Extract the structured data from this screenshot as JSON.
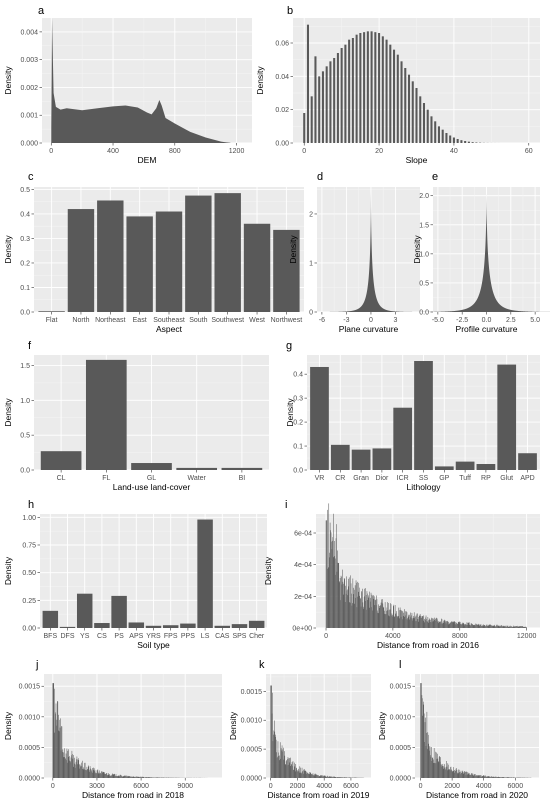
{
  "chart_data": [
    {
      "id": "a",
      "label": "a",
      "type": "histogram",
      "xlabel": "DEM",
      "ylabel": "Density",
      "xlim": [
        -60,
        1300
      ],
      "ylim": [
        0,
        0.0045
      ],
      "xticks": [
        0,
        400,
        800,
        1200
      ],
      "yticks": [
        0,
        0.001,
        0.002,
        0.003,
        0.004
      ],
      "yticklabels": [
        "0.000",
        "0.001",
        "0.002",
        "0.003",
        "0.004"
      ],
      "profile": [
        [
          0,
          0.0006
        ],
        [
          5,
          0.0045
        ],
        [
          15,
          0.0018
        ],
        [
          30,
          0.0013
        ],
        [
          60,
          0.0012
        ],
        [
          100,
          0.00125
        ],
        [
          200,
          0.00118
        ],
        [
          300,
          0.00125
        ],
        [
          400,
          0.00132
        ],
        [
          480,
          0.00135
        ],
        [
          560,
          0.00128
        ],
        [
          620,
          0.0011
        ],
        [
          650,
          0.00103
        ],
        [
          680,
          0.00125
        ],
        [
          700,
          0.00155
        ],
        [
          715,
          0.00135
        ],
        [
          740,
          0.0009
        ],
        [
          800,
          0.0007
        ],
        [
          900,
          0.0004
        ],
        [
          1000,
          0.0002
        ],
        [
          1100,
          5e-05
        ],
        [
          1160,
          0
        ]
      ]
    },
    {
      "id": "b",
      "label": "b",
      "type": "bar",
      "xlabel": "Slope",
      "ylabel": "Density",
      "xlim": [
        -3,
        63
      ],
      "ylim": [
        0,
        0.075
      ],
      "xticks": [
        0,
        20,
        40,
        60
      ],
      "yticks": [
        0,
        0.02,
        0.04,
        0.06
      ],
      "yticklabels": [
        "0.00",
        "0.02",
        "0.04",
        "0.06"
      ],
      "x": [
        0,
        1,
        2,
        3,
        4,
        5,
        6,
        7,
        8,
        9,
        10,
        11,
        12,
        13,
        14,
        15,
        16,
        17,
        18,
        19,
        20,
        21,
        22,
        23,
        24,
        25,
        26,
        27,
        28,
        29,
        30,
        31,
        32,
        33,
        34,
        35,
        36,
        37,
        38,
        39,
        40,
        41,
        42,
        43,
        44,
        45,
        46,
        47,
        48,
        49,
        50,
        51,
        52,
        53,
        54,
        55,
        56,
        57,
        58,
        59,
        60
      ],
      "values": [
        0.018,
        0.071,
        0.028,
        0.052,
        0.04,
        0.043,
        0.046,
        0.049,
        0.051,
        0.054,
        0.057,
        0.059,
        0.062,
        0.063,
        0.065,
        0.066,
        0.0665,
        0.067,
        0.067,
        0.0665,
        0.066,
        0.064,
        0.062,
        0.059,
        0.056,
        0.053,
        0.049,
        0.045,
        0.041,
        0.037,
        0.033,
        0.028,
        0.024,
        0.02,
        0.016,
        0.013,
        0.01,
        0.008,
        0.006,
        0.0045,
        0.0033,
        0.0024,
        0.0017,
        0.0012,
        0.0008,
        0.0005,
        0.0003,
        0.0002,
        0.0001,
        6e-05,
        3e-05,
        2e-05,
        1e-05,
        0,
        0,
        0,
        0,
        0,
        0,
        0,
        0
      ]
    },
    {
      "id": "c",
      "label": "c",
      "type": "bar",
      "xlabel": "Aspect",
      "ylabel": "Density",
      "ylim": [
        0,
        0.51
      ],
      "yticks": [
        0,
        0.1,
        0.2,
        0.3,
        0.4,
        0.5
      ],
      "yticklabels": [
        "0.0",
        "0.1",
        "0.2",
        "0.3",
        "0.4",
        "0.5"
      ],
      "categories": [
        "Flat",
        "North",
        "Northeast",
        "East",
        "Southeast",
        "South",
        "Southwest",
        "West",
        "Northwest"
      ],
      "values": [
        0.003,
        0.42,
        0.455,
        0.39,
        0.41,
        0.475,
        0.485,
        0.36,
        0.335
      ]
    },
    {
      "id": "d",
      "label": "d",
      "type": "histogram",
      "xlabel": "Plane curvature",
      "ylabel": "Density",
      "xlim": [
        -6.6,
        6
      ],
      "ylim": [
        0,
        2.55
      ],
      "xticks": [
        -6,
        -3,
        0,
        3
      ],
      "yticks": [
        0,
        1,
        2
      ],
      "yticklabels": [
        "0",
        "1",
        "2"
      ],
      "peak": [
        0,
        2.45
      ],
      "width": 0.28
    },
    {
      "id": "e",
      "label": "e",
      "type": "histogram",
      "xlabel": "Profile curvature",
      "ylabel": "Density",
      "xlim": [
        -5.5,
        5.5
      ],
      "ylim": [
        0,
        2.15
      ],
      "xticks": [
        -5,
        -2.5,
        0,
        2.5,
        5
      ],
      "xticklabels": [
        "-5.0",
        "-2.5",
        "0.0",
        "2.5",
        "5.0"
      ],
      "yticks": [
        0,
        0.5,
        1,
        1.5,
        2
      ],
      "yticklabels": [
        "0.0",
        "0.5",
        "1.0",
        "1.5",
        "2.0"
      ],
      "peak": [
        0,
        2.05
      ],
      "width": 0.38
    },
    {
      "id": "f",
      "label": "f",
      "type": "bar",
      "xlabel": "Land-use land-cover",
      "ylabel": "Density",
      "ylim": [
        0,
        1.65
      ],
      "yticks": [
        0,
        0.5,
        1,
        1.5
      ],
      "yticklabels": [
        "0.0",
        "0.5",
        "1.0",
        "1.5"
      ],
      "categories": [
        "CL",
        "FL",
        "GL",
        "Water",
        "BI"
      ],
      "values": [
        0.27,
        1.58,
        0.1,
        0.03,
        0.03
      ]
    },
    {
      "id": "g",
      "label": "g",
      "type": "bar",
      "xlabel": "Lithology",
      "ylabel": "Density",
      "ylim": [
        0,
        0.48
      ],
      "yticks": [
        0,
        0.1,
        0.2,
        0.3,
        0.4
      ],
      "yticklabels": [
        "0.0",
        "0.1",
        "0.2",
        "0.3",
        "0.4"
      ],
      "categories": [
        "VR",
        "CR",
        "Gran",
        "Dior",
        "ICR",
        "SS",
        "GP",
        "Tuff",
        "RP",
        "Glut",
        "APD"
      ],
      "values": [
        0.43,
        0.105,
        0.085,
        0.09,
        0.26,
        0.455,
        0.015,
        0.035,
        0.025,
        0.44,
        0.07
      ]
    },
    {
      "id": "h",
      "label": "h",
      "type": "bar",
      "xlabel": "Soil type",
      "ylabel": "Density",
      "ylim": [
        0,
        1.03
      ],
      "yticks": [
        0,
        0.25,
        0.5,
        0.75,
        1
      ],
      "yticklabels": [
        "0.00",
        "0.25",
        "0.50",
        "0.75",
        "1.00"
      ],
      "categories": [
        "BFS",
        "DFS",
        "YS",
        "CS",
        "PS",
        "APS",
        "YRS",
        "FPS",
        "PPS",
        "LS",
        "CAS",
        "SPS",
        "Cher"
      ],
      "values": [
        0.155,
        0.01,
        0.31,
        0.045,
        0.29,
        0.05,
        0.02,
        0.025,
        0.04,
        0.98,
        0.02,
        0.035,
        0.065
      ]
    },
    {
      "id": "i",
      "label": "i",
      "type": "histogram",
      "xlabel": "Distance from road in 2016",
      "ylabel": "Density",
      "xlim": [
        -600,
        12800
      ],
      "ylim": [
        0,
        0.00072
      ],
      "xticks": [
        0,
        4000,
        8000,
        12000
      ],
      "yticks": [
        0,
        0.0002,
        0.0004,
        0.0006
      ],
      "yticklabels": [
        "0e+00",
        "2e-04",
        "4e-04",
        "6e-04"
      ],
      "decay": {
        "start": 0.00042,
        "rate": 0.00032,
        "spike": 0.00068,
        "end": 12000
      }
    },
    {
      "id": "j",
      "label": "j",
      "type": "histogram",
      "xlabel": "Distance from road in 2018",
      "ylabel": "Density",
      "xlim": [
        -600,
        11500
      ],
      "ylim": [
        0,
        0.0017
      ],
      "xticks": [
        0,
        3000,
        6000,
        9000
      ],
      "yticks": [
        0,
        0.0005,
        0.001,
        0.0015
      ],
      "yticklabels": [
        "0.0000",
        "0.0005",
        "0.0010",
        "0.0015"
      ],
      "decay": {
        "start": 0.0008,
        "rate": 0.00065,
        "spike": 0.00155,
        "end": 10500
      }
    },
    {
      "id": "k",
      "label": "k",
      "type": "histogram",
      "xlabel": "Distance from road in 2019",
      "ylabel": "Density",
      "xlim": [
        -350,
        7500
      ],
      "ylim": [
        0,
        0.0018
      ],
      "xticks": [
        0,
        2000,
        4000,
        6000
      ],
      "yticks": [
        0,
        0.0005,
        0.001,
        0.0015
      ],
      "yticklabels": [
        "0.0000",
        "0.0005",
        "0.0010",
        "0.0015"
      ],
      "decay": {
        "start": 0.0009,
        "rate": 0.0008,
        "spike": 0.0016,
        "end": 7000
      }
    },
    {
      "id": "l",
      "label": "l",
      "type": "histogram",
      "xlabel": "Distance from road in 2020",
      "ylabel": "Density",
      "xlim": [
        -350,
        7500
      ],
      "ylim": [
        0,
        0.0017
      ],
      "xticks": [
        0,
        2000,
        4000,
        6000
      ],
      "yticks": [
        0,
        0.0005,
        0.001,
        0.0015
      ],
      "yticklabels": [
        "0.0000",
        "0.0005",
        "0.0010",
        "0.0015"
      ],
      "decay": {
        "start": 0.00085,
        "rate": 0.0008,
        "spike": 0.00155,
        "end": 7000
      }
    }
  ]
}
